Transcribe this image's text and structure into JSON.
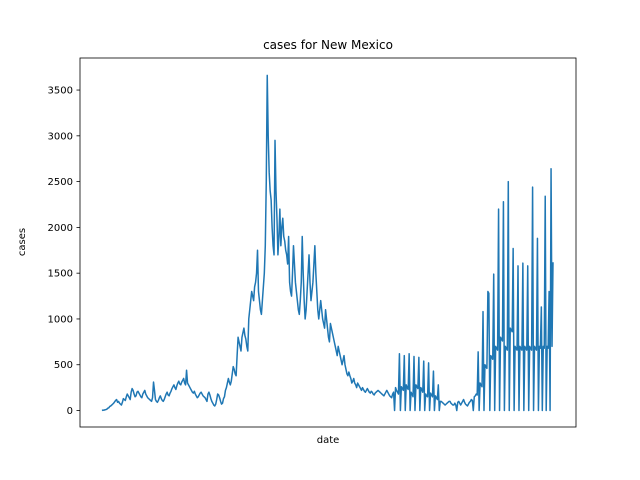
{
  "chart_data": {
    "type": "line",
    "title": "cases for New Mexico",
    "xlabel": "date",
    "ylabel": "cases",
    "ylim": [
      -180,
      3850
    ],
    "yticks": [
      0,
      500,
      1000,
      1500,
      2000,
      2500,
      3000,
      3500
    ],
    "xticks_shown": false,
    "grid": false,
    "series": [
      {
        "color": "#1f77b4",
        "values": [
          0,
          5,
          3,
          8,
          10,
          15,
          25,
          30,
          45,
          50,
          60,
          70,
          80,
          95,
          110,
          120,
          90,
          100,
          80,
          70,
          60,
          90,
          130,
          120,
          110,
          150,
          180,
          160,
          140,
          120,
          200,
          240,
          220,
          180,
          150,
          160,
          200,
          210,
          190,
          170,
          150,
          140,
          180,
          200,
          220,
          180,
          160,
          140,
          130,
          120,
          110,
          100,
          140,
          310,
          220,
          120,
          100,
          90,
          110,
          140,
          160,
          130,
          110,
          100,
          120,
          150,
          180,
          200,
          170,
          160,
          190,
          210,
          240,
          260,
          280,
          250,
          230,
          270,
          300,
          320,
          290,
          280,
          310,
          330,
          350,
          300,
          280,
          440,
          300,
          280,
          260,
          240,
          220,
          200,
          190,
          210,
          180,
          160,
          140,
          150,
          170,
          190,
          200,
          180,
          160,
          150,
          140,
          120,
          100,
          180,
          200,
          170,
          130,
          100,
          80,
          60,
          50,
          70,
          120,
          180,
          170,
          140,
          100,
          70,
          80,
          130,
          150,
          220,
          250,
          300,
          350,
          310,
          280,
          320,
          400,
          480,
          450,
          400,
          380,
          600,
          800,
          750,
          700,
          650,
          800,
          850,
          900,
          820,
          780,
          700,
          650,
          1000,
          1100,
          1200,
          1300,
          1250,
          1200,
          1350,
          1400,
          1500,
          1750,
          1300,
          1200,
          1100,
          1050,
          1200,
          1350,
          1500,
          1800,
          2500,
          3660,
          3000,
          2600,
          2400,
          2300,
          2000,
          1800,
          1700,
          2950,
          2400,
          2100,
          1700,
          1900,
          2200,
          1800,
          2000,
          2100,
          1900,
          1850,
          1750,
          1700,
          1600,
          1900,
          1400,
          1300,
          1250,
          1500,
          1800,
          1600,
          1400,
          1300,
          1200,
          1100,
          1050,
          1200,
          1400,
          1900,
          1500,
          1200,
          1000,
          1100,
          1300,
          1500,
          1700,
          1400,
          1200,
          1300,
          1400,
          1600,
          1800,
          1500,
          1300,
          1100,
          1000,
          1100,
          1200,
          1100,
          1000,
          950,
          900,
          1100,
          1000,
          900,
          800,
          750,
          950,
          900,
          850,
          800,
          750,
          700,
          650,
          600,
          700,
          650,
          600,
          550,
          500,
          550,
          600,
          500,
          450,
          400,
          380,
          420,
          380,
          350,
          300,
          320,
          350,
          300,
          280,
          250,
          300,
          280,
          260,
          240,
          220,
          250,
          230,
          210,
          200,
          220,
          240,
          220,
          200,
          190,
          210,
          200,
          180,
          170,
          190,
          200,
          210,
          220,
          210,
          200,
          190,
          180,
          170,
          160,
          180,
          200,
          220,
          200,
          180,
          160,
          150,
          140,
          180,
          200,
          0,
          250,
          220,
          200,
          180,
          620,
          0,
          260,
          240,
          220,
          600,
          0,
          280,
          250,
          230,
          620,
          0,
          200,
          180,
          150,
          590,
          0,
          280,
          260,
          240,
          580,
          0,
          250,
          230,
          200,
          540,
          0,
          180,
          160,
          150,
          520,
          0,
          190,
          170,
          150,
          430,
          0,
          160,
          140,
          120,
          280,
          0,
          100,
          100,
          90,
          80,
          70,
          60,
          70,
          80,
          90,
          100,
          100,
          80,
          70,
          60,
          60,
          80,
          60,
          0,
          90,
          100,
          80,
          60,
          80,
          100,
          120,
          90,
          70,
          60,
          50,
          70,
          90,
          100,
          120,
          110,
          0,
          150,
          160,
          180,
          170,
          640,
          0,
          300,
          280,
          260,
          1080,
          0,
          500,
          480,
          460,
          1300,
          1280,
          0,
          600,
          580,
          560,
          1490,
          0,
          700,
          680,
          660,
          2200,
          0,
          800,
          780,
          760,
          2280,
          0,
          700,
          680,
          660,
          2500,
          0,
          900,
          880,
          860,
          1770,
          0,
          700,
          680,
          660,
          1580,
          0,
          700,
          680,
          660,
          1610,
          0,
          700,
          680,
          660,
          1580,
          0,
          700,
          680,
          660,
          2440,
          0,
          700,
          680,
          660,
          1880,
          0,
          700,
          680,
          1130,
          0,
          700,
          680,
          2340,
          0,
          700,
          680,
          1300,
          0,
          2640,
          700,
          1620
        ]
      }
    ]
  }
}
